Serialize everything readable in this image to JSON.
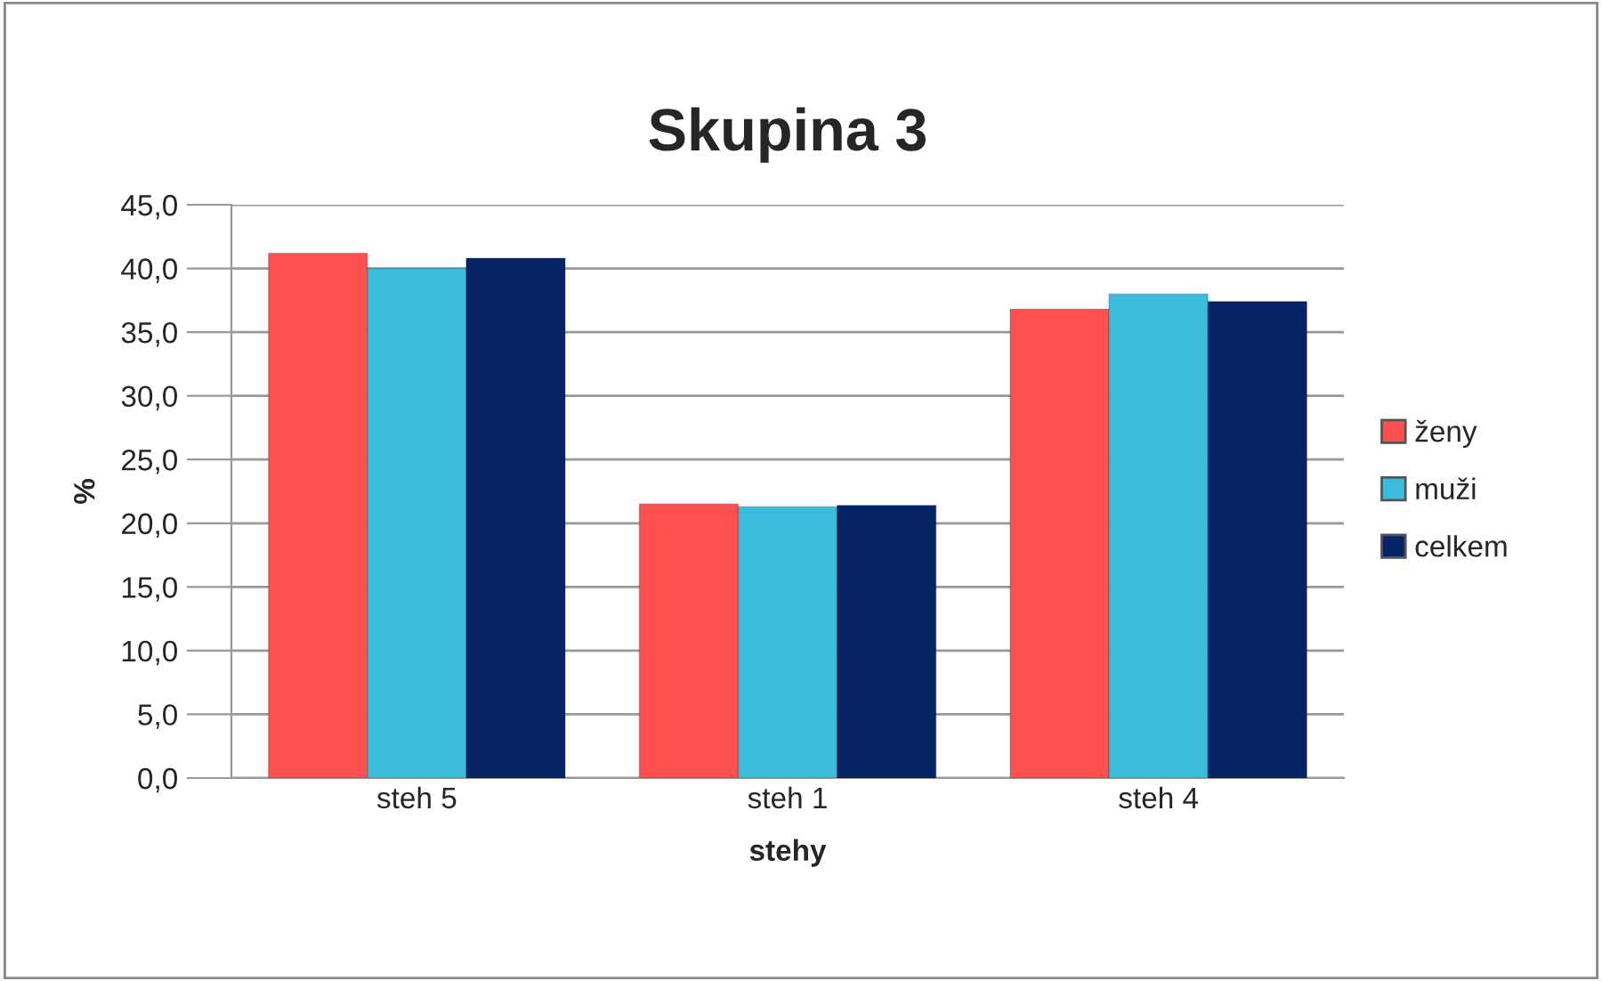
{
  "chart_data": {
    "type": "bar",
    "title": "Skupina 3",
    "xlabel": "stehy",
    "ylabel": "%",
    "categories": [
      "steh 5",
      "steh 1",
      "steh 4"
    ],
    "series": [
      {
        "name": "ženy",
        "color": "#ff5050",
        "values": [
          41.2,
          21.5,
          36.8
        ]
      },
      {
        "name": "muži",
        "color": "#3cbcdc",
        "values": [
          40.0,
          21.3,
          38.0
        ]
      },
      {
        "name": "celkem",
        "color": "#062466",
        "values": [
          40.8,
          21.4,
          37.4
        ]
      }
    ],
    "ylim": [
      0,
      45
    ],
    "yticks": [
      {
        "value": 0,
        "label": "0,0"
      },
      {
        "value": 5,
        "label": "5,0"
      },
      {
        "value": 10,
        "label": "10,0"
      },
      {
        "value": 15,
        "label": "15,0"
      },
      {
        "value": 20,
        "label": "20,0"
      },
      {
        "value": 25,
        "label": "25,0"
      },
      {
        "value": 30,
        "label": "30,0"
      },
      {
        "value": 35,
        "label": "35,0"
      },
      {
        "value": 40,
        "label": "40,0"
      },
      {
        "value": 45,
        "label": "45,0"
      }
    ],
    "grid": "y",
    "legend": "right"
  }
}
